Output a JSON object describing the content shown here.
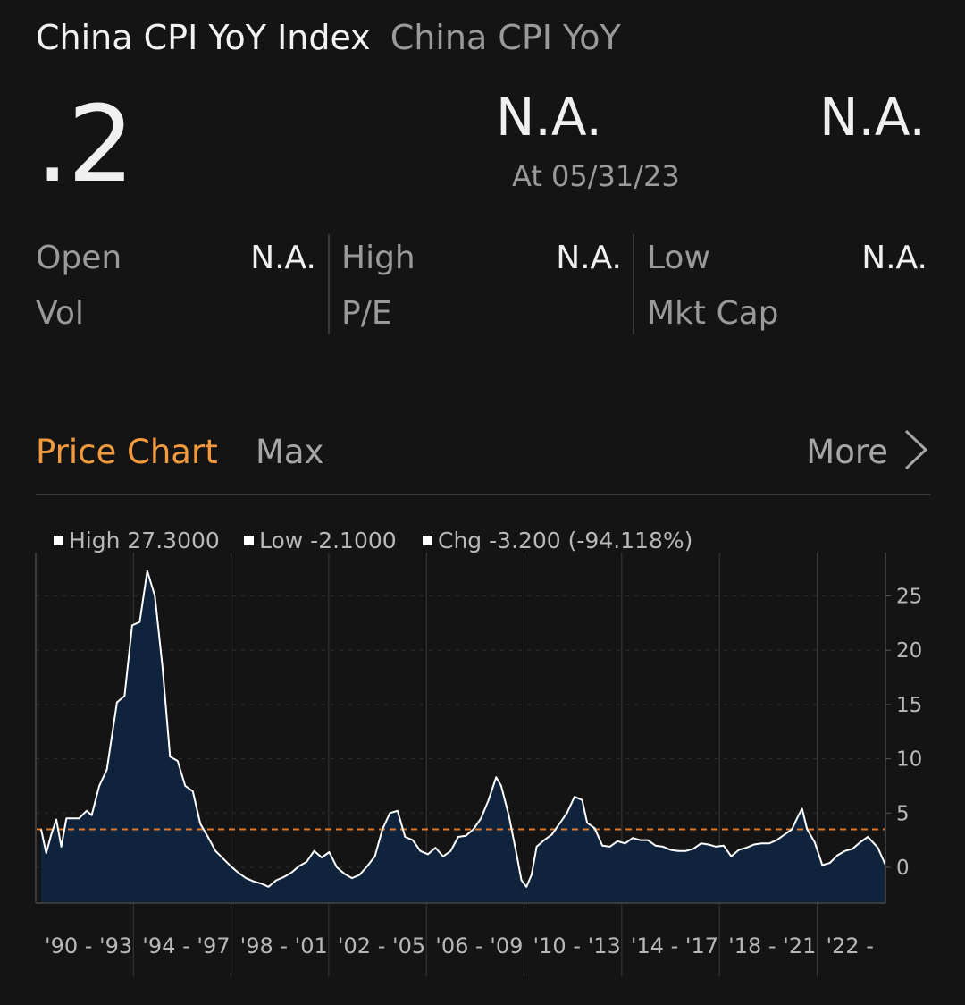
{
  "header": {
    "title": "China CPI YoY Index",
    "subtitle": "China CPI YoY",
    "last_value": ".2",
    "change": "N.A.",
    "change_pct": "N.A.",
    "as_of": "At 05/31/23"
  },
  "stats": {
    "open_label": "Open",
    "open_value": "N.A.",
    "high_label": "High",
    "high_value": "N.A.",
    "low_label": "Low",
    "low_value": "N.A.",
    "vol_label": "Vol",
    "pe_label": "P/E",
    "mktcap_label": "Mkt Cap"
  },
  "chart_section": {
    "title": "Price Chart",
    "range": "Max",
    "more_label": "More",
    "legend": {
      "high": "High 27.3000",
      "low": "Low -2.1000",
      "chg": "Chg -3.200 (-94.118%)"
    }
  },
  "colors": {
    "accent": "#f39a3c",
    "fill": "#0f233d",
    "line": "#ffffff",
    "reference_line": "#e07a2e"
  },
  "chart_data": {
    "type": "area",
    "xlim": [
      1990.0,
      2023.4
    ],
    "ylim": [
      -3.3,
      29
    ],
    "yticks": [
      0,
      5,
      10,
      15,
      20,
      25
    ],
    "xticks": [
      "'90 - '93",
      "'94 - '97",
      "'98 - '01",
      "'02 - '05",
      "'06 - '09",
      "'10 - '13",
      "'14 - '17",
      "'18 - '21",
      "'22 -"
    ],
    "reference_line": 3.5,
    "series": [
      {
        "x": [
          1990.0,
          1990.2,
          1990.4,
          1990.6,
          1990.8,
          1991.0,
          1991.2,
          1991.5,
          1991.8,
          1992.0,
          1992.3,
          1992.6,
          1993.0,
          1993.3,
          1993.6,
          1993.9,
          1994.2,
          1994.5,
          1994.8,
          1995.1,
          1995.4,
          1995.7,
          1996.0,
          1996.3,
          1996.6,
          1996.9,
          1997.2,
          1997.5,
          1997.8,
          1998.1,
          1998.4,
          1998.7,
          1999.0,
          1999.3,
          1999.6,
          1999.9,
          2000.2,
          2000.5,
          2000.8,
          2001.1,
          2001.4,
          2001.7,
          2002.0,
          2002.3,
          2002.6,
          2002.9,
          2003.2,
          2003.5,
          2003.8,
          2004.1,
          2004.4,
          2004.7,
          2005.0,
          2005.3,
          2005.6,
          2005.9,
          2006.2,
          2006.5,
          2006.8,
          2007.1,
          2007.4,
          2007.7,
          2008.0,
          2008.2,
          2008.5,
          2008.8,
          2009.0,
          2009.2,
          2009.4,
          2009.6,
          2009.9,
          2010.2,
          2010.5,
          2010.8,
          2011.1,
          2011.4,
          2011.6,
          2011.9,
          2012.2,
          2012.5,
          2012.8,
          2013.1,
          2013.4,
          2013.7,
          2014.0,
          2014.3,
          2014.6,
          2014.9,
          2015.2,
          2015.5,
          2015.8,
          2016.1,
          2016.4,
          2016.7,
          2017.0,
          2017.3,
          2017.6,
          2017.9,
          2018.2,
          2018.5,
          2018.8,
          2019.1,
          2019.4,
          2019.7,
          2019.9,
          2020.1,
          2020.3,
          2020.6,
          2020.9,
          2021.2,
          2021.5,
          2021.8,
          2022.1,
          2022.4,
          2022.7,
          2022.9,
          2023.1,
          2023.4
        ],
        "values": [
          3.5,
          1.3,
          3.0,
          4.4,
          1.9,
          4.5,
          4.5,
          4.5,
          5.2,
          4.8,
          7.5,
          9.0,
          15.2,
          15.8,
          22.3,
          22.6,
          27.3,
          25.0,
          18.5,
          10.2,
          9.8,
          7.5,
          7.0,
          4.0,
          2.8,
          1.5,
          0.8,
          0.1,
          -0.5,
          -1.0,
          -1.3,
          -1.5,
          -1.8,
          -1.2,
          -0.9,
          -0.5,
          0.1,
          0.5,
          1.5,
          0.9,
          1.4,
          0.0,
          -0.6,
          -1.0,
          -0.7,
          0.1,
          1.0,
          3.5,
          5.0,
          5.2,
          2.8,
          2.5,
          1.5,
          1.2,
          1.8,
          1.0,
          1.5,
          2.8,
          2.9,
          3.5,
          4.5,
          6.2,
          8.3,
          7.5,
          4.8,
          1.3,
          -1.2,
          -1.8,
          -0.7,
          1.9,
          2.5,
          3.0,
          4.0,
          5.0,
          6.5,
          6.2,
          4.1,
          3.6,
          2.0,
          1.9,
          2.4,
          2.2,
          2.7,
          2.5,
          2.5,
          2.0,
          1.9,
          1.6,
          1.5,
          1.5,
          1.7,
          2.2,
          2.1,
          1.9,
          2.0,
          1.0,
          1.6,
          1.8,
          2.1,
          2.2,
          2.2,
          2.5,
          3.0,
          3.5,
          4.5,
          5.4,
          3.5,
          2.3,
          0.2,
          0.4,
          1.1,
          1.5,
          1.7,
          2.3,
          2.8,
          2.3,
          1.8,
          0.2
        ]
      }
    ]
  }
}
